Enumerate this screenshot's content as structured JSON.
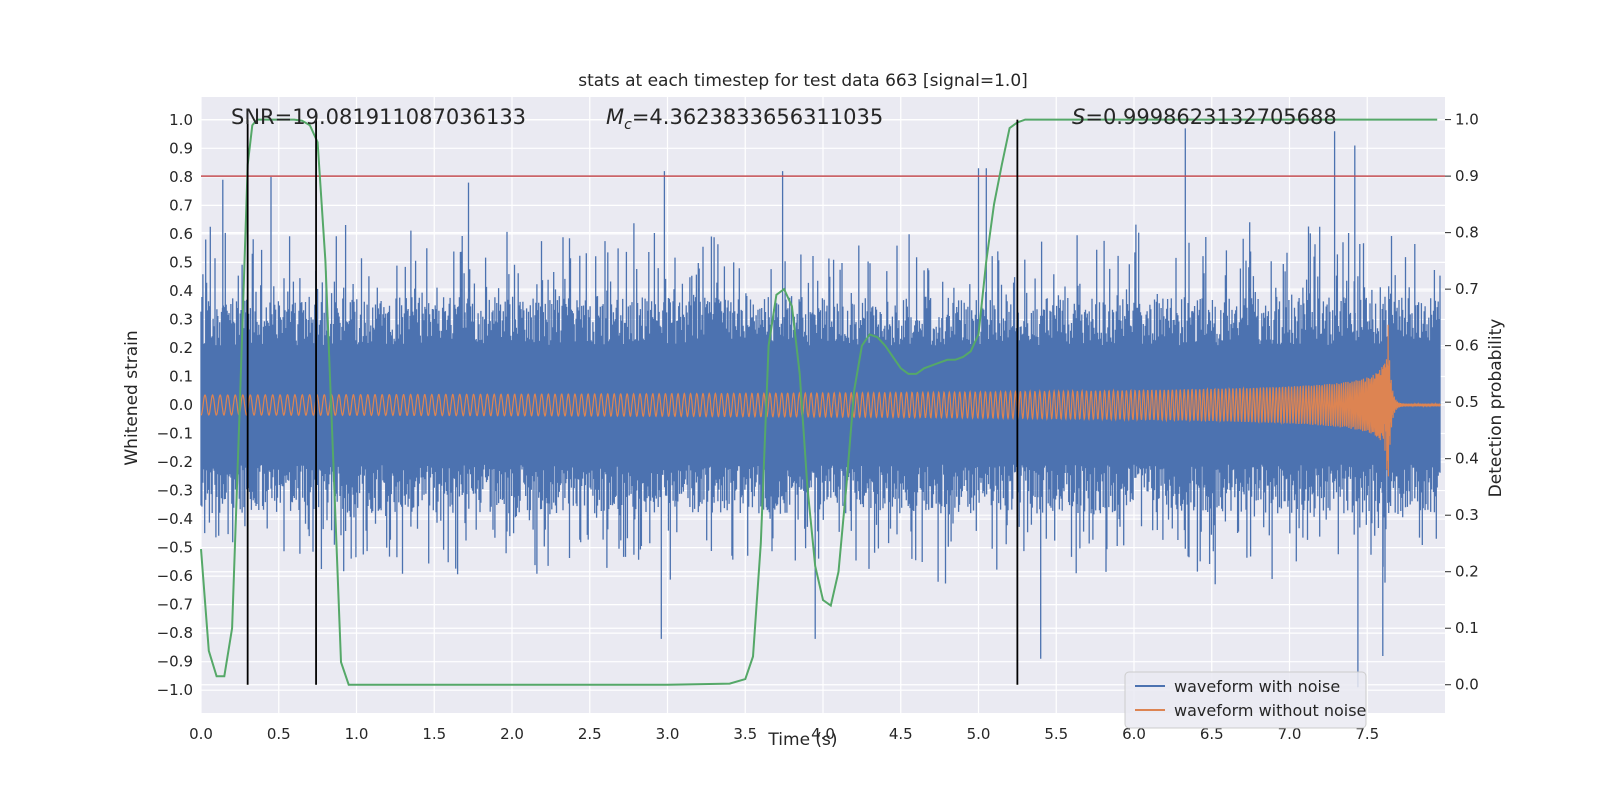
{
  "chart_data": {
    "type": "line",
    "title": "stats at each timestep for test data 663 [signal=1.0]",
    "xlabel": "Time (s)",
    "ylabel_left": "Whitened strain",
    "ylabel_right": "Detection probability",
    "xlim": [
      0.0,
      8.0
    ],
    "ylim_left": [
      -1.08,
      1.08
    ],
    "ylim_right": [
      -0.05,
      1.04
    ],
    "x_ticks": [
      "0.0",
      "0.5",
      "1.0",
      "1.5",
      "2.0",
      "2.5",
      "3.0",
      "3.5",
      "4.0",
      "4.5",
      "5.0",
      "5.5",
      "6.0",
      "6.5",
      "7.0",
      "7.5"
    ],
    "x_tick_values": [
      0.0,
      0.5,
      1.0,
      1.5,
      2.0,
      2.5,
      3.0,
      3.5,
      4.0,
      4.5,
      5.0,
      5.5,
      6.0,
      6.5,
      7.0,
      7.5
    ],
    "y_left_ticks": [
      "1.0",
      "0.9",
      "0.8",
      "0.7",
      "0.6",
      "0.5",
      "0.4",
      "0.3",
      "0.2",
      "0.1",
      "0.0",
      "−0.1",
      "−0.2",
      "−0.3",
      "−0.4",
      "−0.5",
      "−0.6",
      "−0.7",
      "−0.8",
      "−0.9",
      "−1.0"
    ],
    "y_left_tick_values": [
      1.0,
      0.9,
      0.8,
      0.7,
      0.6,
      0.5,
      0.4,
      0.3,
      0.2,
      0.1,
      0.0,
      -0.1,
      -0.2,
      -0.3,
      -0.4,
      -0.5,
      -0.6,
      -0.7,
      -0.8,
      -0.9,
      -1.0
    ],
    "y_right_ticks": [
      "1.0",
      "0.9",
      "0.8",
      "0.7",
      "0.6",
      "0.5",
      "0.4",
      "0.3",
      "0.2",
      "0.1",
      "0.0"
    ],
    "y_right_tick_values": [
      1.0,
      0.9,
      0.8,
      0.7,
      0.6,
      0.5,
      0.4,
      0.3,
      0.2,
      0.1,
      0.0
    ],
    "annotations": {
      "snr": "SNR=19.081911087036133",
      "mc": "=4.3623833656311035",
      "mc_symbol": "M",
      "mc_sub": "c",
      "s_symbol": "S",
      "s": "=0.9998623132705688"
    },
    "threshold_probability": 0.9,
    "vertical_lines_x": [
      0.3,
      0.74,
      5.25
    ],
    "series": [
      {
        "name": "waveform with noise",
        "color": "#4c72b0",
        "noise_envelope": 0.38,
        "peak_spikes": [
          {
            "x": 0.14,
            "y": 0.79
          },
          {
            "x": 0.45,
            "y": 0.8
          },
          {
            "x": 1.72,
            "y": 0.78
          },
          {
            "x": 2.98,
            "y": 0.82
          },
          {
            "x": 3.74,
            "y": 0.82
          },
          {
            "x": 5.0,
            "y": 0.83
          },
          {
            "x": 5.05,
            "y": 0.83
          },
          {
            "x": 6.33,
            "y": 0.97
          },
          {
            "x": 7.29,
            "y": 0.96
          },
          {
            "x": 7.42,
            "y": 0.91
          },
          {
            "x": 2.96,
            "y": -0.82
          },
          {
            "x": 3.95,
            "y": -0.82
          },
          {
            "x": 5.4,
            "y": -0.89
          },
          {
            "x": 7.44,
            "y": -0.99
          },
          {
            "x": 7.6,
            "y": -0.88
          }
        ]
      },
      {
        "name": "waveform without noise",
        "color": "#dd8452",
        "chirp_start_amplitude": 0.035,
        "chirp_peak_amplitude": 0.37,
        "merger_time": 7.63,
        "ringdown_amplitude": 0.005
      },
      {
        "name": "Detection probability",
        "color": "#55a868",
        "x": [
          0.0,
          0.05,
          0.1,
          0.15,
          0.2,
          0.25,
          0.3,
          0.33,
          0.36,
          0.4,
          0.45,
          0.5,
          0.55,
          0.6,
          0.65,
          0.7,
          0.75,
          0.8,
          0.85,
          0.9,
          0.95,
          1.0,
          1.05,
          1.5,
          2.0,
          2.5,
          3.0,
          3.4,
          3.5,
          3.55,
          3.6,
          3.65,
          3.7,
          3.75,
          3.8,
          3.85,
          3.9,
          3.95,
          4.0,
          4.05,
          4.1,
          4.15,
          4.2,
          4.25,
          4.3,
          4.35,
          4.4,
          4.45,
          4.5,
          4.55,
          4.6,
          4.65,
          4.7,
          4.75,
          4.8,
          4.85,
          4.9,
          4.95,
          5.0,
          5.05,
          5.1,
          5.15,
          5.2,
          5.25,
          5.3,
          5.35,
          5.4,
          5.45,
          5.5,
          6.0,
          6.5,
          7.0,
          7.5,
          7.95
        ],
        "y": [
          0.24,
          0.06,
          0.015,
          0.015,
          0.1,
          0.5,
          0.92,
          0.99,
          1.0,
          1.0,
          1.0,
          1.0,
          1.0,
          1.0,
          0.998,
          0.99,
          0.96,
          0.75,
          0.4,
          0.04,
          0.0,
          0.0,
          0.0,
          0.0,
          0.0,
          0.0,
          0.0,
          0.002,
          0.01,
          0.05,
          0.25,
          0.6,
          0.69,
          0.7,
          0.67,
          0.55,
          0.35,
          0.21,
          0.15,
          0.14,
          0.2,
          0.35,
          0.52,
          0.6,
          0.62,
          0.615,
          0.6,
          0.58,
          0.56,
          0.55,
          0.55,
          0.56,
          0.565,
          0.57,
          0.575,
          0.575,
          0.58,
          0.59,
          0.62,
          0.75,
          0.85,
          0.92,
          0.985,
          0.995,
          1.0,
          1.0,
          1.0,
          1.0,
          1.0,
          1.0,
          1.0,
          1.0,
          1.0,
          1.0
        ]
      }
    ],
    "legend_location": "lower-right",
    "legend": [
      "waveform with noise",
      "waveform without noise"
    ],
    "colors": {
      "background": "#eaeaf2",
      "grid": "#ffffff",
      "threshold": "#c44e52",
      "vline": "#000000"
    }
  }
}
